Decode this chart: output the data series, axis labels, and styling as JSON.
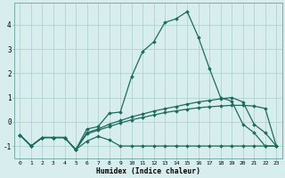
{
  "xlabel": "Humidex (Indice chaleur)",
  "xlim": [
    -0.5,
    23.5
  ],
  "ylim": [
    -1.5,
    4.9
  ],
  "xticks": [
    0,
    1,
    2,
    3,
    4,
    5,
    6,
    7,
    8,
    9,
    10,
    11,
    12,
    13,
    14,
    15,
    16,
    17,
    18,
    19,
    20,
    21,
    22,
    23
  ],
  "yticks": [
    -1,
    0,
    1,
    2,
    3,
    4
  ],
  "background_color": "#d8eeee",
  "grid_color": "#aacece",
  "line_color": "#1e6b5e",
  "line1_x": [
    0,
    1,
    2,
    3,
    4,
    5,
    6,
    7,
    8,
    9,
    10,
    11,
    12,
    13,
    14,
    15,
    16,
    17,
    18,
    19,
    20,
    21,
    22,
    23
  ],
  "line1_y": [
    -0.55,
    -1.0,
    -0.65,
    -0.65,
    -0.65,
    -1.15,
    -0.8,
    -0.6,
    -0.75,
    -1.0,
    -1.0,
    -1.0,
    -1.0,
    -1.0,
    -1.0,
    -1.0,
    -1.0,
    -1.0,
    -1.0,
    -1.0,
    -1.0,
    -1.0,
    -1.0,
    -1.0
  ],
  "line2_x": [
    0,
    1,
    2,
    3,
    4,
    5,
    6,
    7,
    8,
    9,
    10,
    11,
    12,
    13,
    14,
    15,
    16,
    17,
    18,
    19,
    20,
    21,
    22,
    23
  ],
  "line2_y": [
    -0.55,
    -1.0,
    -0.65,
    -0.65,
    -0.65,
    -1.15,
    -0.5,
    -0.35,
    -0.2,
    -0.05,
    0.08,
    0.18,
    0.28,
    0.38,
    0.45,
    0.52,
    0.58,
    0.62,
    0.65,
    0.68,
    0.68,
    0.65,
    0.55,
    -1.0
  ],
  "line3_x": [
    0,
    1,
    2,
    3,
    4,
    5,
    6,
    7,
    8,
    9,
    10,
    11,
    12,
    13,
    14,
    15,
    16,
    17,
    18,
    19,
    20,
    21,
    22,
    23
  ],
  "line3_y": [
    -0.55,
    -1.0,
    -0.65,
    -0.65,
    -0.65,
    -1.15,
    -0.45,
    -0.3,
    -0.1,
    0.05,
    0.2,
    0.32,
    0.44,
    0.54,
    0.63,
    0.73,
    0.82,
    0.88,
    0.95,
    1.0,
    0.82,
    -0.1,
    -0.45,
    -1.0
  ],
  "line4_x": [
    0,
    1,
    2,
    3,
    4,
    5,
    6,
    7,
    8,
    9,
    10,
    11,
    12,
    13,
    14,
    15,
    16,
    17,
    18,
    19,
    20,
    21,
    22,
    23
  ],
  "line4_y": [
    -0.55,
    -1.0,
    -0.65,
    -0.65,
    -0.65,
    -1.15,
    -0.3,
    -0.2,
    0.35,
    0.4,
    1.85,
    2.9,
    3.3,
    4.1,
    4.25,
    4.55,
    3.5,
    2.2,
    1.0,
    0.85,
    -0.1,
    -0.45,
    -1.0,
    -1.0
  ]
}
